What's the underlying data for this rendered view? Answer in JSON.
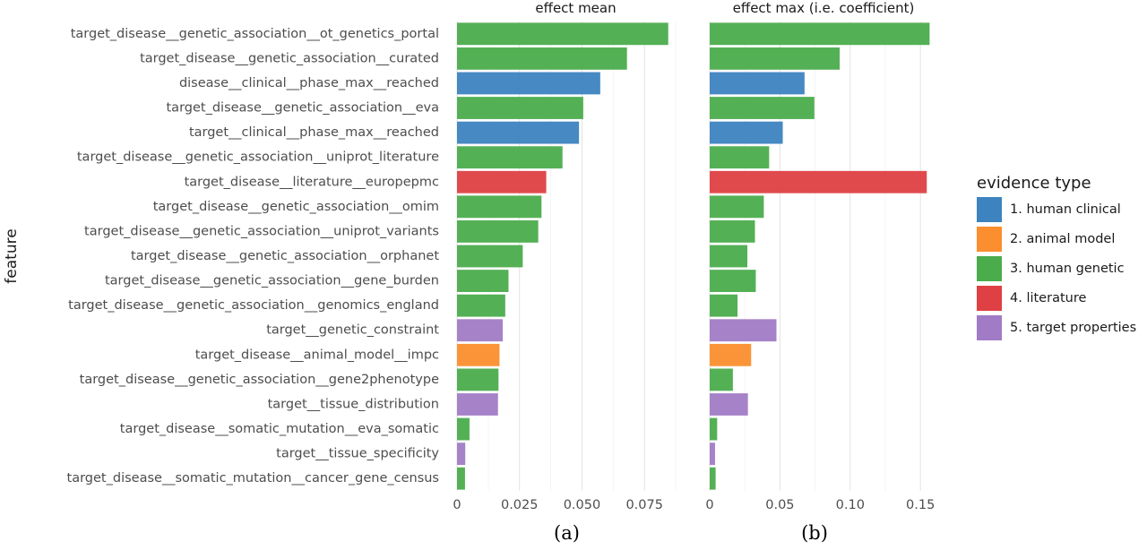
{
  "chart_data": [
    {
      "type": "bar",
      "orientation": "horizontal",
      "title": "effect mean",
      "panel_label": "(a)",
      "ylabel": "feature",
      "xlim": [
        0,
        0.095
      ],
      "xticks": [
        0,
        0.025,
        0.05,
        0.075
      ],
      "xtick_labels": [
        "0",
        "0.025",
        "0.050",
        "0.075"
      ],
      "grid": true,
      "categories": [
        "target_disease__genetic_association__ot_genetics_portal",
        "target_disease__genetic_association__curated",
        "disease__clinical__phase_max__reached",
        "target_disease__genetic_association__eva",
        "target__clinical__phase_max__reached",
        "target_disease__genetic_association__uniprot_literature",
        "target_disease__literature__europepmc",
        "target_disease__genetic_association__omim",
        "target_disease__genetic_association__uniprot_variants",
        "target_disease__genetic_association__orphanet",
        "target_disease__genetic_association__gene_burden",
        "target_disease__genetic_association__genomics_england",
        "target__genetic_constraint",
        "target_disease__animal_model__impc",
        "target_disease__genetic_association__gene2phenotype",
        "target__tissue_distribution",
        "target_disease__somatic_mutation__eva_somatic",
        "target__tissue_specificity",
        "target_disease__somatic_mutation__cancer_gene_census"
      ],
      "values": [
        0.0845,
        0.068,
        0.0573,
        0.0505,
        0.0488,
        0.0422,
        0.0357,
        0.0338,
        0.0325,
        0.0263,
        0.0206,
        0.0193,
        0.0183,
        0.017,
        0.0166,
        0.0164,
        0.005,
        0.0033,
        0.0032
      ],
      "evidence_type": [
        3,
        3,
        1,
        3,
        1,
        3,
        4,
        3,
        3,
        3,
        3,
        3,
        5,
        2,
        3,
        5,
        3,
        5,
        3
      ]
    },
    {
      "type": "bar",
      "orientation": "horizontal",
      "title": "effect max (i.e. coefficient)",
      "panel_label": "(b)",
      "xlim": [
        0,
        0.162
      ],
      "xticks": [
        0,
        0.05,
        0.1,
        0.15
      ],
      "xtick_labels": [
        "0",
        "0.05",
        "0.10",
        "0.15"
      ],
      "grid": true,
      "values": [
        0.1565,
        0.0925,
        0.0675,
        0.0745,
        0.052,
        0.0423,
        0.1545,
        0.0385,
        0.0322,
        0.0268,
        0.0328,
        0.0198,
        0.0475,
        0.0295,
        0.0165,
        0.0272,
        0.0053,
        0.0038,
        0.0042
      ],
      "evidence_type": [
        3,
        3,
        1,
        3,
        1,
        3,
        4,
        3,
        3,
        3,
        3,
        3,
        5,
        2,
        3,
        5,
        3,
        5,
        3
      ]
    }
  ],
  "legend": {
    "title": "evidence type",
    "placement": "right",
    "items": [
      {
        "id": 1,
        "label": "1. human clinical",
        "color": "#3C83C0"
      },
      {
        "id": 2,
        "label": "2. animal model",
        "color": "#FB8E2E"
      },
      {
        "id": 3,
        "label": "3. human genetic",
        "color": "#4BAC4C"
      },
      {
        "id": 4,
        "label": "4. literature",
        "color": "#DE4043"
      },
      {
        "id": 5,
        "label": "5. target properties",
        "color": "#A17BC6"
      }
    ]
  }
}
